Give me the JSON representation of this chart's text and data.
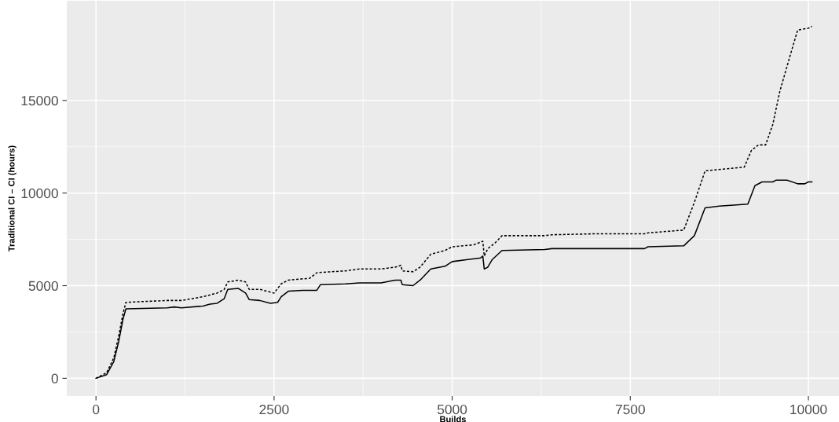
{
  "chart_data": {
    "type": "line",
    "xlabel": "Builds",
    "ylabel": "Traditional CI – CI (hours)",
    "xlim": [
      -410,
      10430
    ],
    "ylim": [
      -960,
      20380
    ],
    "xticks": [
      0,
      2500,
      5000,
      7500,
      10000
    ],
    "yticks": [
      0,
      5000,
      10000,
      15000
    ],
    "grid": true,
    "legend": false,
    "marker": "none",
    "series": [
      {
        "color": "#000000",
        "line_style": "solid",
        "x": [
          0,
          150,
          250,
          320,
          380,
          420,
          1000,
          1100,
          1200,
          1500,
          1600,
          1700,
          1800,
          1850,
          2000,
          2100,
          2150,
          2300,
          2450,
          2550,
          2600,
          2700,
          2900,
          3100,
          3150,
          3500,
          3700,
          4000,
          4200,
          4280,
          4300,
          4450,
          4550,
          4700,
          4900,
          5000,
          5200,
          5400,
          5430,
          5450,
          5500,
          5560,
          5700,
          6300,
          6400,
          7000,
          7700,
          7750,
          8250,
          8400,
          8550,
          8750,
          9150,
          9250,
          9350,
          9500,
          9550,
          9700,
          9850,
          9950,
          10000,
          10050
        ],
        "values": [
          0,
          200,
          900,
          2000,
          3200,
          3750,
          3800,
          3850,
          3800,
          3900,
          4000,
          4050,
          4300,
          4800,
          4850,
          4600,
          4250,
          4200,
          4050,
          4100,
          4400,
          4700,
          4750,
          4750,
          5050,
          5100,
          5150,
          5150,
          5300,
          5300,
          5050,
          5000,
          5300,
          5900,
          6050,
          6300,
          6400,
          6500,
          6600,
          5900,
          6000,
          6400,
          6900,
          6950,
          7000,
          7000,
          7000,
          7100,
          7150,
          7700,
          9200,
          9300,
          9400,
          10400,
          10600,
          10600,
          10700,
          10700,
          10500,
          10500,
          10600,
          10600
        ]
      },
      {
        "color": "#000000",
        "line_style": "dotted",
        "x": [
          0,
          150,
          250,
          320,
          380,
          420,
          1000,
          1200,
          1500,
          1700,
          1800,
          1850,
          2000,
          2100,
          2150,
          2300,
          2500,
          2600,
          2700,
          3000,
          3100,
          3500,
          3700,
          4000,
          4200,
          4280,
          4300,
          4450,
          4550,
          4700,
          4900,
          5000,
          5300,
          5430,
          5450,
          5500,
          5600,
          5700,
          6300,
          6400,
          7000,
          7700,
          7750,
          8250,
          8400,
          8550,
          9100,
          9200,
          9300,
          9400,
          9500,
          9600,
          9750,
          9850,
          10000,
          10050
        ],
        "values": [
          0,
          300,
          1100,
          2300,
          3500,
          4100,
          4200,
          4200,
          4400,
          4600,
          4800,
          5200,
          5300,
          5200,
          4800,
          4800,
          4600,
          5100,
          5300,
          5400,
          5700,
          5800,
          5900,
          5900,
          6000,
          6100,
          5800,
          5750,
          6000,
          6700,
          6900,
          7100,
          7200,
          7400,
          6600,
          7000,
          7300,
          7700,
          7700,
          7750,
          7800,
          7800,
          7850,
          8000,
          9500,
          11200,
          11400,
          12300,
          12600,
          12600,
          13700,
          15500,
          17500,
          18800,
          18900,
          19000
        ]
      }
    ]
  }
}
